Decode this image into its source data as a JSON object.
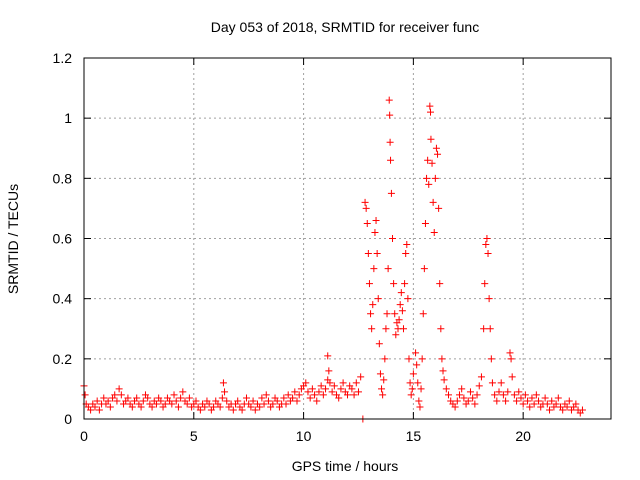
{
  "chart_data": {
    "type": "scatter",
    "title": "Day 053 of 2018, SRMTID for receiver func",
    "xlabel": "GPS time / hours",
    "ylabel": "SRMTID / TECUs",
    "xlim": [
      0,
      24
    ],
    "ylim": [
      0,
      1.2
    ],
    "xticks": [
      0,
      5,
      10,
      15,
      20
    ],
    "xtick_labels": [
      "0",
      "5",
      "10",
      "15",
      "20"
    ],
    "yticks": [
      0,
      0.2,
      0.4,
      0.6,
      0.8,
      1.0,
      1.2
    ],
    "ytick_labels": [
      "0",
      "0.2",
      "0.4",
      "0.6",
      "0.8",
      "1",
      "1.2"
    ],
    "grid": true,
    "marker": "+",
    "series_color": "#ff0000",
    "series": [
      {
        "name": "SRMTID",
        "points": [
          [
            0.0,
            0.11
          ],
          [
            0.05,
            0.08
          ],
          [
            0.1,
            0.05
          ],
          [
            0.2,
            0.04
          ],
          [
            0.3,
            0.03
          ],
          [
            0.4,
            0.05
          ],
          [
            0.5,
            0.04
          ],
          [
            0.6,
            0.06
          ],
          [
            0.7,
            0.03
          ],
          [
            0.8,
            0.05
          ],
          [
            0.9,
            0.07
          ],
          [
            1.0,
            0.05
          ],
          [
            1.1,
            0.06
          ],
          [
            1.2,
            0.04
          ],
          [
            1.3,
            0.07
          ],
          [
            1.4,
            0.08
          ],
          [
            1.5,
            0.06
          ],
          [
            1.6,
            0.1
          ],
          [
            1.7,
            0.08
          ],
          [
            1.8,
            0.05
          ],
          [
            1.9,
            0.06
          ],
          [
            2.0,
            0.07
          ],
          [
            2.1,
            0.05
          ],
          [
            2.2,
            0.04
          ],
          [
            2.3,
            0.06
          ],
          [
            2.4,
            0.07
          ],
          [
            2.5,
            0.05
          ],
          [
            2.6,
            0.04
          ],
          [
            2.7,
            0.06
          ],
          [
            2.8,
            0.08
          ],
          [
            2.9,
            0.07
          ],
          [
            3.0,
            0.05
          ],
          [
            3.1,
            0.04
          ],
          [
            3.2,
            0.06
          ],
          [
            3.3,
            0.05
          ],
          [
            3.4,
            0.07
          ],
          [
            3.5,
            0.06
          ],
          [
            3.6,
            0.04
          ],
          [
            3.7,
            0.05
          ],
          [
            3.8,
            0.07
          ],
          [
            3.9,
            0.06
          ],
          [
            4.0,
            0.05
          ],
          [
            4.1,
            0.08
          ],
          [
            4.2,
            0.06
          ],
          [
            4.3,
            0.04
          ],
          [
            4.4,
            0.07
          ],
          [
            4.5,
            0.09
          ],
          [
            4.6,
            0.06
          ],
          [
            4.7,
            0.05
          ],
          [
            4.8,
            0.07
          ],
          [
            4.9,
            0.04
          ],
          [
            5.0,
            0.05
          ],
          [
            5.1,
            0.06
          ],
          [
            5.2,
            0.04
          ],
          [
            5.3,
            0.03
          ],
          [
            5.4,
            0.05
          ],
          [
            5.5,
            0.04
          ],
          [
            5.6,
            0.06
          ],
          [
            5.7,
            0.05
          ],
          [
            5.8,
            0.03
          ],
          [
            5.9,
            0.04
          ],
          [
            6.0,
            0.06
          ],
          [
            6.1,
            0.05
          ],
          [
            6.2,
            0.04
          ],
          [
            6.3,
            0.07
          ],
          [
            6.35,
            0.12
          ],
          [
            6.4,
            0.09
          ],
          [
            6.5,
            0.06
          ],
          [
            6.6,
            0.04
          ],
          [
            6.7,
            0.05
          ],
          [
            6.8,
            0.03
          ],
          [
            6.9,
            0.05
          ],
          [
            7.0,
            0.06
          ],
          [
            7.1,
            0.04
          ],
          [
            7.2,
            0.03
          ],
          [
            7.3,
            0.05
          ],
          [
            7.4,
            0.07
          ],
          [
            7.5,
            0.05
          ],
          [
            7.6,
            0.04
          ],
          [
            7.7,
            0.06
          ],
          [
            7.8,
            0.03
          ],
          [
            7.9,
            0.05
          ],
          [
            8.0,
            0.04
          ],
          [
            8.1,
            0.07
          ],
          [
            8.2,
            0.05
          ],
          [
            8.3,
            0.08
          ],
          [
            8.4,
            0.06
          ],
          [
            8.5,
            0.04
          ],
          [
            8.6,
            0.05
          ],
          [
            8.7,
            0.07
          ],
          [
            8.8,
            0.06
          ],
          [
            8.9,
            0.04
          ],
          [
            9.0,
            0.05
          ],
          [
            9.1,
            0.07
          ],
          [
            9.2,
            0.05
          ],
          [
            9.3,
            0.08
          ],
          [
            9.4,
            0.06
          ],
          [
            9.5,
            0.07
          ],
          [
            9.6,
            0.09
          ],
          [
            9.7,
            0.06
          ],
          [
            9.8,
            0.08
          ],
          [
            9.9,
            0.1
          ],
          [
            10.0,
            0.11
          ],
          [
            10.1,
            0.12
          ],
          [
            10.2,
            0.09
          ],
          [
            10.3,
            0.07
          ],
          [
            10.4,
            0.1
          ],
          [
            10.5,
            0.08
          ],
          [
            10.6,
            0.06
          ],
          [
            10.7,
            0.09
          ],
          [
            10.8,
            0.11
          ],
          [
            10.9,
            0.08
          ],
          [
            11.0,
            0.1
          ],
          [
            11.1,
            0.13
          ],
          [
            11.15,
            0.16
          ],
          [
            11.2,
            0.12
          ],
          [
            11.1,
            0.21
          ],
          [
            11.3,
            0.09
          ],
          [
            11.4,
            0.11
          ],
          [
            11.5,
            0.08
          ],
          [
            11.6,
            0.07
          ],
          [
            11.7,
            0.1
          ],
          [
            11.8,
            0.12
          ],
          [
            11.9,
            0.09
          ],
          [
            12.0,
            0.08
          ],
          [
            12.1,
            0.11
          ],
          [
            12.2,
            0.1
          ],
          [
            12.3,
            0.08
          ],
          [
            12.4,
            0.12
          ],
          [
            12.5,
            0.09
          ],
          [
            12.6,
            0.14
          ],
          [
            12.7,
            0.0
          ],
          [
            12.8,
            0.72
          ],
          [
            12.85,
            0.7
          ],
          [
            12.9,
            0.65
          ],
          [
            12.95,
            0.55
          ],
          [
            13.0,
            0.45
          ],
          [
            13.05,
            0.35
          ],
          [
            13.1,
            0.3
          ],
          [
            13.15,
            0.38
          ],
          [
            13.2,
            0.5
          ],
          [
            13.25,
            0.62
          ],
          [
            13.3,
            0.66
          ],
          [
            13.35,
            0.55
          ],
          [
            13.4,
            0.4
          ],
          [
            13.45,
            0.25
          ],
          [
            13.5,
            0.15
          ],
          [
            13.55,
            0.1
          ],
          [
            13.6,
            0.08
          ],
          [
            13.65,
            0.13
          ],
          [
            13.7,
            0.2
          ],
          [
            13.75,
            0.3
          ],
          [
            13.8,
            0.35
          ],
          [
            13.85,
            0.5
          ],
          [
            13.9,
            1.06
          ],
          [
            13.92,
            1.01
          ],
          [
            13.94,
            0.92
          ],
          [
            13.96,
            0.86
          ],
          [
            14.0,
            0.75
          ],
          [
            14.05,
            0.6
          ],
          [
            14.1,
            0.45
          ],
          [
            14.15,
            0.35
          ],
          [
            14.2,
            0.28
          ],
          [
            14.25,
            0.32
          ],
          [
            14.3,
            0.3
          ],
          [
            14.35,
            0.33
          ],
          [
            14.4,
            0.38
          ],
          [
            14.45,
            0.42
          ],
          [
            14.5,
            0.36
          ],
          [
            14.55,
            0.3
          ],
          [
            14.6,
            0.45
          ],
          [
            14.65,
            0.55
          ],
          [
            14.7,
            0.58
          ],
          [
            14.75,
            0.4
          ],
          [
            14.8,
            0.2
          ],
          [
            14.85,
            0.12
          ],
          [
            14.9,
            0.08
          ],
          [
            14.95,
            0.1
          ],
          [
            15.0,
            0.15
          ],
          [
            15.1,
            0.22
          ],
          [
            15.15,
            0.18
          ],
          [
            15.2,
            0.12
          ],
          [
            15.25,
            0.06
          ],
          [
            15.3,
            0.04
          ],
          [
            15.35,
            0.1
          ],
          [
            15.4,
            0.2
          ],
          [
            15.45,
            0.35
          ],
          [
            15.5,
            0.5
          ],
          [
            15.55,
            0.65
          ],
          [
            15.6,
            0.8
          ],
          [
            15.65,
            0.86
          ],
          [
            15.7,
            0.78
          ],
          [
            15.75,
            1.04
          ],
          [
            15.78,
            1.02
          ],
          [
            15.8,
            0.93
          ],
          [
            15.85,
            0.85
          ],
          [
            15.9,
            0.72
          ],
          [
            15.95,
            0.62
          ],
          [
            16.0,
            0.8
          ],
          [
            16.05,
            0.9
          ],
          [
            16.1,
            0.88
          ],
          [
            16.15,
            0.7
          ],
          [
            16.2,
            0.45
          ],
          [
            16.25,
            0.3
          ],
          [
            16.3,
            0.2
          ],
          [
            16.35,
            0.16
          ],
          [
            16.4,
            0.13
          ],
          [
            16.5,
            0.1
          ],
          [
            16.6,
            0.08
          ],
          [
            16.7,
            0.06
          ],
          [
            16.8,
            0.05
          ],
          [
            16.9,
            0.04
          ],
          [
            17.0,
            0.06
          ],
          [
            17.1,
            0.08
          ],
          [
            17.2,
            0.1
          ],
          [
            17.3,
            0.07
          ],
          [
            17.4,
            0.05
          ],
          [
            17.5,
            0.06
          ],
          [
            17.6,
            0.09
          ],
          [
            17.7,
            0.07
          ],
          [
            17.8,
            0.05
          ],
          [
            17.9,
            0.08
          ],
          [
            18.0,
            0.11
          ],
          [
            18.1,
            0.14
          ],
          [
            18.2,
            0.3
          ],
          [
            18.25,
            0.45
          ],
          [
            18.3,
            0.58
          ],
          [
            18.35,
            0.6
          ],
          [
            18.4,
            0.55
          ],
          [
            18.45,
            0.4
          ],
          [
            18.5,
            0.3
          ],
          [
            18.55,
            0.2
          ],
          [
            18.6,
            0.12
          ],
          [
            18.7,
            0.08
          ],
          [
            18.8,
            0.06
          ],
          [
            18.9,
            0.09
          ],
          [
            19.0,
            0.12
          ],
          [
            19.1,
            0.08
          ],
          [
            19.2,
            0.06
          ],
          [
            19.3,
            0.09
          ],
          [
            19.4,
            0.22
          ],
          [
            19.45,
            0.2
          ],
          [
            19.5,
            0.14
          ],
          [
            19.6,
            0.08
          ],
          [
            19.7,
            0.06
          ],
          [
            19.8,
            0.09
          ],
          [
            19.9,
            0.07
          ],
          [
            20.0,
            0.05
          ],
          [
            20.1,
            0.08
          ],
          [
            20.2,
            0.06
          ],
          [
            20.3,
            0.04
          ],
          [
            20.4,
            0.07
          ],
          [
            20.5,
            0.05
          ],
          [
            20.6,
            0.08
          ],
          [
            20.7,
            0.06
          ],
          [
            20.8,
            0.04
          ],
          [
            20.9,
            0.05
          ],
          [
            21.0,
            0.07
          ],
          [
            21.1,
            0.05
          ],
          [
            21.2,
            0.03
          ],
          [
            21.3,
            0.06
          ],
          [
            21.4,
            0.04
          ],
          [
            21.5,
            0.05
          ],
          [
            21.6,
            0.07
          ],
          [
            21.7,
            0.04
          ],
          [
            21.8,
            0.03
          ],
          [
            21.9,
            0.05
          ],
          [
            22.0,
            0.04
          ],
          [
            22.1,
            0.06
          ],
          [
            22.2,
            0.03
          ],
          [
            22.3,
            0.04
          ],
          [
            22.4,
            0.05
          ],
          [
            22.5,
            0.03
          ],
          [
            22.6,
            0.02
          ],
          [
            22.7,
            0.03
          ]
        ]
      }
    ]
  }
}
